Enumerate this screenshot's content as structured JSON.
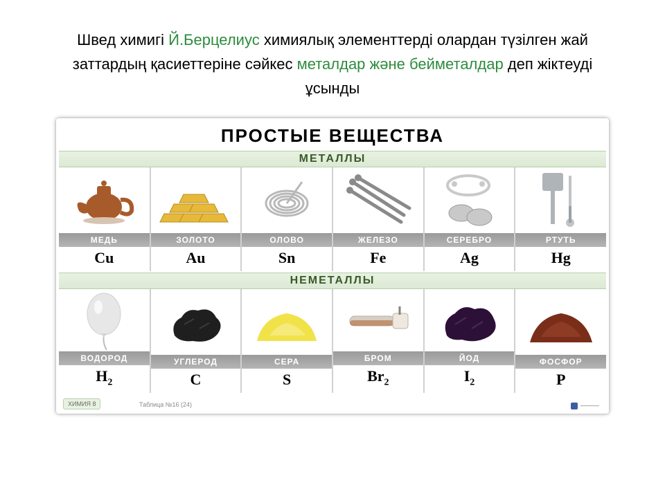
{
  "headline": {
    "part1": "Швед химигі ",
    "name": "Й.Берцелиус",
    "part2": " химиялық элементтерді олардан түзілген жай заттардың қасиеттеріне сәйкес ",
    "green": "металдар және  бейметалдар",
    "part3": " деп жіктеуді ұсынды",
    "name_color": "#2e8b3d",
    "green_color": "#2e8b3d"
  },
  "poster": {
    "title": "ПРОСТЫЕ ВЕЩЕСТВА",
    "section_metals": "МЕТАЛЛЫ",
    "section_nonmetals": "НЕМЕТАЛЛЫ",
    "band_bg_top": "#e8f2e2",
    "footer_tag": "ХИМИЯ 8",
    "footer_mid": "Таблица №16 (24)",
    "footer_right": "———"
  },
  "metals": [
    {
      "name": "МЕДЬ",
      "symbol": "Cu",
      "icon": "teapot",
      "color": "#a85b2a"
    },
    {
      "name": "ЗОЛОТО",
      "symbol": "Au",
      "icon": "goldbars",
      "color": "#e6b93a"
    },
    {
      "name": "ОЛОВО",
      "symbol": "Sn",
      "icon": "wirecoil",
      "color": "#b8b8b8"
    },
    {
      "name": "ЖЕЛЕЗО",
      "symbol": "Fe",
      "icon": "nails",
      "color": "#8a8a8a"
    },
    {
      "name": "СЕРЕБРО",
      "symbol": "Ag",
      "icon": "silvercoins",
      "color": "#c9c9c9"
    },
    {
      "name": "РТУТЬ",
      "symbol": "Hg",
      "icon": "thermometer",
      "color": "#aeb4b8"
    }
  ],
  "nonmetals": [
    {
      "name": "ВОДОРОД",
      "symbol": "H",
      "sub": "2",
      "icon": "balloon",
      "color": "#e7e7e7"
    },
    {
      "name": "УГЛЕРОД",
      "symbol": "C",
      "sub": "",
      "icon": "coal",
      "color": "#1f1f1f"
    },
    {
      "name": "СЕРА",
      "symbol": "S",
      "sub": "",
      "icon": "sulfur",
      "color": "#f1e24a"
    },
    {
      "name": "БРОМ",
      "symbol": "Br",
      "sub": "2",
      "icon": "ampoule",
      "color": "#d7cfc6"
    },
    {
      "name": "ЙОД",
      "symbol": "I",
      "sub": "2",
      "icon": "iodine",
      "color": "#2d1038"
    },
    {
      "name": "ФОСФОР",
      "symbol": "P",
      "sub": "",
      "icon": "redpowder",
      "color": "#7a2e1a"
    }
  ]
}
